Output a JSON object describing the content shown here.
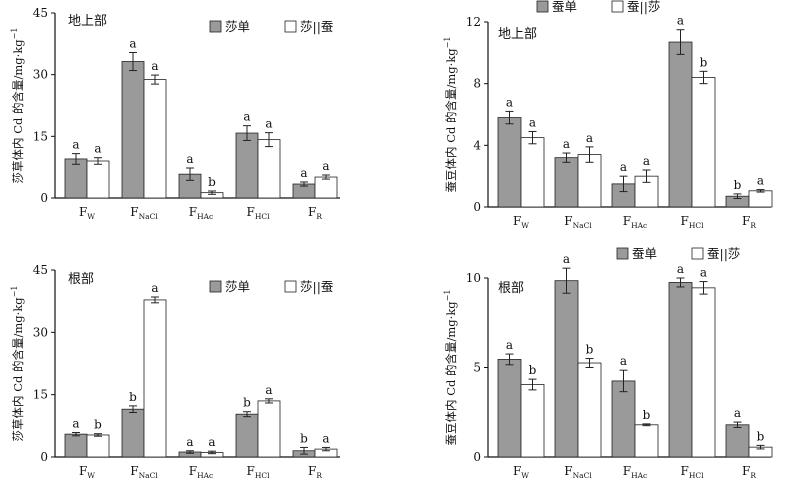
{
  "chart_data": [
    {
      "type": "bar",
      "panel_label": "地上部",
      "ylabel": "莎草体内 Cd 的含量/mg·kg",
      "ylabel_sup": "−1",
      "ylim": [
        0,
        45
      ],
      "yticks": [
        "0",
        "15",
        "30",
        "45"
      ],
      "legend_position": "top",
      "categories": [
        {
          "main": "F",
          "sub": "W"
        },
        {
          "main": "F",
          "sub": "NaCl"
        },
        {
          "main": "F",
          "sub": "HAc"
        },
        {
          "main": "F",
          "sub": "HCl"
        },
        {
          "main": "F",
          "sub": "R"
        }
      ],
      "series": [
        {
          "name": "莎单",
          "color": "#9a9a9a",
          "values": [
            9.5,
            33.2,
            5.8,
            15.8,
            3.4
          ],
          "errors": [
            1.3,
            2.2,
            1.5,
            1.8,
            0.5
          ],
          "labels": [
            "a",
            "a",
            "a",
            "a",
            "a"
          ]
        },
        {
          "name": "莎||蚕",
          "color": "#ffffff",
          "values": [
            9.0,
            28.8,
            1.3,
            14.2,
            5.1
          ],
          "errors": [
            0.8,
            1.1,
            0.4,
            1.7,
            0.5
          ],
          "labels": [
            "a",
            "a",
            "b",
            "a",
            "a"
          ]
        }
      ]
    },
    {
      "type": "bar",
      "panel_label": "地上部",
      "ylabel": "蚕豆体内 Cd 的含量/mg·kg",
      "ylabel_sup": "−1",
      "ylim": [
        0,
        12
      ],
      "yticks": [
        "0",
        "4",
        "8",
        "12"
      ],
      "legend_position": "top",
      "categories": [
        {
          "main": "F",
          "sub": "W"
        },
        {
          "main": "F",
          "sub": "NaCl"
        },
        {
          "main": "F",
          "sub": "HAc"
        },
        {
          "main": "F",
          "sub": "HCl"
        },
        {
          "main": "F",
          "sub": "R"
        }
      ],
      "series": [
        {
          "name": "蚕单",
          "color": "#9a9a9a",
          "values": [
            5.8,
            3.2,
            1.5,
            10.7,
            0.7
          ],
          "errors": [
            0.4,
            0.3,
            0.5,
            0.8,
            0.15
          ],
          "labels": [
            "a",
            "a",
            "a",
            "a",
            "b"
          ]
        },
        {
          "name": "蚕||莎",
          "color": "#ffffff",
          "values": [
            4.5,
            3.4,
            2.0,
            8.4,
            1.05
          ],
          "errors": [
            0.4,
            0.5,
            0.4,
            0.4,
            0.08
          ],
          "labels": [
            "a",
            "a",
            "a",
            "b",
            "a"
          ]
        }
      ]
    },
    {
      "type": "bar",
      "panel_label": "根部",
      "ylabel": "莎草体内 Cd 的含量/mg·kg",
      "ylabel_sup": "−1",
      "ylim": [
        0,
        45
      ],
      "yticks": [
        "0",
        "15",
        "30",
        "45"
      ],
      "legend_position": "top",
      "categories": [
        {
          "main": "F",
          "sub": "W"
        },
        {
          "main": "F",
          "sub": "NaCl"
        },
        {
          "main": "F",
          "sub": "HAc"
        },
        {
          "main": "F",
          "sub": "HCl"
        },
        {
          "main": "F",
          "sub": "R"
        }
      ],
      "series": [
        {
          "name": "莎单",
          "color": "#9a9a9a",
          "values": [
            5.5,
            11.5,
            1.2,
            10.3,
            1.5
          ],
          "errors": [
            0.4,
            0.8,
            0.3,
            0.6,
            0.8
          ],
          "labels": [
            "a",
            "b",
            "a",
            "b",
            "b"
          ]
        },
        {
          "name": "莎||蚕",
          "color": "#ffffff",
          "values": [
            5.3,
            37.8,
            1.1,
            13.5,
            1.9
          ],
          "errors": [
            0.3,
            0.7,
            0.3,
            0.5,
            0.4
          ],
          "labels": [
            "b",
            "a",
            "a",
            "a",
            "a"
          ]
        }
      ]
    },
    {
      "type": "bar",
      "panel_label": "根部",
      "ylabel": "蚕豆体内 Cd 的含量/mg·kg",
      "ylabel_sup": "−1",
      "ylim": [
        0,
        10
      ],
      "yticks": [
        "0",
        "5",
        "10"
      ],
      "legend_position": "top",
      "categories": [
        {
          "main": "F",
          "sub": "W"
        },
        {
          "main": "F",
          "sub": "NaCl"
        },
        {
          "main": "F",
          "sub": "HAc"
        },
        {
          "main": "F",
          "sub": "HCl"
        },
        {
          "main": "F",
          "sub": "R"
        }
      ],
      "series": [
        {
          "name": "蚕单",
          "color": "#9a9a9a",
          "values": [
            5.45,
            9.85,
            4.25,
            9.75,
            1.8
          ],
          "errors": [
            0.3,
            0.7,
            0.6,
            0.25,
            0.15
          ],
          "labels": [
            "a",
            "a",
            "a",
            "a",
            "a"
          ]
        },
        {
          "name": "蚕||莎",
          "color": "#ffffff",
          "values": [
            4.05,
            5.25,
            1.8,
            9.45,
            0.55
          ],
          "errors": [
            0.3,
            0.25,
            0.05,
            0.35,
            0.1
          ],
          "labels": [
            "b",
            "b",
            "b",
            "a",
            "b"
          ]
        }
      ]
    }
  ]
}
